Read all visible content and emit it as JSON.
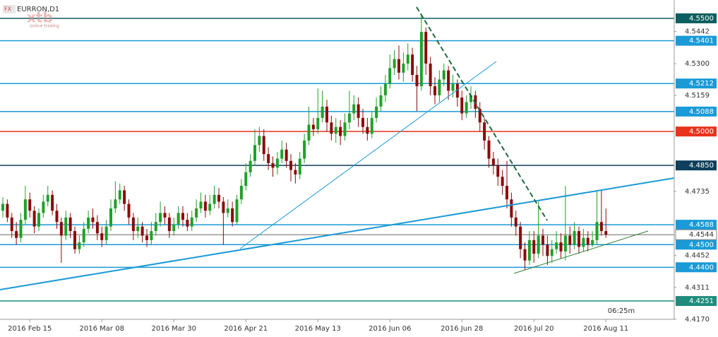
{
  "chart_data": {
    "type": "candlestick",
    "title": "EURRON,D1",
    "badge": "FX",
    "logo": "xtb",
    "logo_sub": "online trading",
    "timer": "06:25m",
    "categories": [
      null,
      null,
      null,
      null,
      null,
      null,
      "2016 Feb 15",
      null,
      null,
      null,
      null,
      null,
      null,
      null,
      null,
      null,
      null,
      null,
      null,
      null,
      null,
      null,
      "2016 Mar 08",
      null,
      null,
      null,
      null,
      null,
      null,
      null,
      null,
      null,
      null,
      null,
      null,
      null,
      null,
      null,
      "2016 Mar 30",
      null,
      null,
      null,
      null,
      null,
      null,
      null,
      null,
      null,
      null,
      null,
      null,
      null,
      null,
      null,
      "2016 Apr 21",
      null,
      null,
      null,
      null,
      null,
      null,
      null,
      null,
      null,
      null,
      null,
      null,
      null,
      null,
      null,
      "2016 May 13",
      null,
      null,
      null,
      null,
      null,
      null,
      null,
      null,
      null,
      null,
      null,
      null,
      null,
      null,
      null,
      "2016 Jun 06",
      null,
      null,
      null,
      null,
      null,
      null,
      null,
      null,
      null,
      null,
      null,
      null,
      null,
      null,
      null,
      "2016 Jun 28",
      null,
      null,
      null,
      null,
      null,
      null,
      null,
      null,
      null,
      null,
      null,
      null,
      null,
      null,
      null,
      "2016 Jul 20",
      null,
      null,
      null,
      null,
      null,
      null,
      null,
      null,
      null,
      null,
      null,
      null,
      null,
      null,
      null,
      "2016 Aug 11"
    ],
    "open": [
      4.465,
      4.468,
      4.462,
      4.456,
      4.453,
      4.461,
      4.47,
      4.465,
      4.458,
      4.464,
      4.469,
      4.472,
      4.465,
      4.46,
      4.454,
      4.462,
      4.456,
      4.448,
      4.451,
      4.457,
      4.462,
      4.46,
      4.455,
      4.452,
      4.458,
      4.466,
      4.47,
      4.474,
      4.468,
      4.462,
      4.456,
      4.458,
      4.454,
      4.452,
      4.456,
      4.46,
      4.464,
      4.462,
      4.456,
      4.459,
      4.464,
      4.461,
      4.458,
      4.462,
      4.466,
      4.469,
      4.465,
      4.468,
      4.472,
      4.469,
      4.464,
      4.466,
      4.46,
      4.47,
      4.476,
      4.482,
      4.487,
      4.494,
      4.498,
      4.49,
      4.486,
      4.484,
      4.488,
      4.492,
      4.487,
      4.483,
      4.481,
      4.488,
      4.496,
      4.503,
      4.501,
      4.506,
      4.511,
      4.504,
      4.499,
      4.502,
      4.498,
      4.504,
      4.508,
      4.512,
      4.506,
      4.502,
      4.499,
      4.506,
      4.511,
      4.516,
      4.521,
      4.528,
      4.532,
      4.526,
      4.53,
      4.534,
      4.525,
      4.52,
      4.544,
      4.53,
      4.52,
      4.516,
      4.523,
      4.527,
      4.518,
      4.521,
      4.515,
      4.508,
      4.513,
      4.516,
      4.51,
      4.504,
      4.496,
      4.488,
      4.485,
      4.48,
      4.476,
      4.47,
      4.462,
      4.458,
      4.448,
      4.443,
      4.452,
      4.446,
      4.454,
      4.45,
      4.445,
      4.448,
      4.451,
      4.447,
      4.454,
      4.45,
      4.456,
      4.449,
      4.453,
      4.45,
      4.452,
      4.46,
      4.456
    ],
    "high": [
      4.471,
      4.47,
      4.464,
      4.46,
      4.464,
      4.476,
      4.473,
      4.467,
      4.466,
      4.472,
      4.476,
      4.474,
      4.468,
      4.462,
      4.465,
      4.464,
      4.458,
      4.454,
      4.46,
      4.465,
      4.466,
      4.463,
      4.458,
      4.461,
      4.47,
      4.478,
      4.477,
      4.476,
      4.47,
      4.464,
      4.462,
      4.46,
      4.457,
      4.46,
      4.464,
      4.469,
      4.467,
      4.464,
      4.462,
      4.467,
      4.467,
      4.464,
      4.465,
      4.47,
      4.473,
      4.472,
      4.472,
      4.476,
      4.475,
      4.471,
      4.47,
      4.469,
      4.472,
      4.479,
      4.486,
      4.49,
      4.501,
      4.502,
      4.501,
      4.493,
      4.489,
      4.491,
      4.496,
      4.495,
      4.49,
      4.486,
      4.491,
      4.499,
      4.511,
      4.506,
      4.519,
      4.518,
      4.514,
      4.507,
      4.506,
      4.505,
      4.508,
      4.518,
      4.516,
      4.515,
      4.51,
      4.506,
      4.509,
      4.515,
      4.52,
      4.525,
      4.534,
      4.536,
      4.538,
      4.535,
      4.539,
      4.537,
      4.529,
      4.552,
      4.546,
      4.533,
      4.524,
      4.527,
      4.53,
      4.529,
      4.525,
      4.523,
      4.518,
      4.516,
      4.52,
      4.518,
      4.513,
      4.506,
      4.498,
      4.491,
      4.488,
      4.483,
      4.487,
      4.473,
      4.465,
      4.46,
      4.451,
      4.456,
      4.456,
      4.469,
      4.457,
      4.454,
      4.452,
      4.456,
      4.455,
      4.476,
      4.458,
      4.46,
      4.458,
      4.457,
      4.456,
      4.456,
      4.474,
      4.474,
      4.466
    ],
    "low": [
      4.462,
      4.46,
      4.453,
      4.45,
      4.451,
      4.459,
      4.462,
      4.455,
      4.456,
      4.462,
      4.467,
      4.463,
      4.457,
      4.442,
      4.452,
      4.453,
      4.446,
      4.446,
      4.449,
      4.455,
      4.457,
      4.452,
      4.449,
      4.45,
      4.456,
      4.464,
      4.468,
      4.465,
      4.459,
      4.452,
      4.453,
      4.451,
      4.449,
      4.45,
      4.454,
      4.458,
      4.459,
      4.453,
      4.454,
      4.457,
      4.458,
      4.456,
      4.456,
      4.46,
      4.464,
      4.462,
      4.463,
      4.466,
      4.466,
      4.45,
      4.462,
      4.458,
      4.459,
      4.468,
      4.474,
      4.48,
      4.485,
      4.491,
      4.487,
      4.483,
      4.48,
      4.481,
      4.486,
      4.484,
      4.478,
      4.477,
      4.479,
      4.486,
      4.494,
      4.498,
      4.499,
      4.504,
      4.5,
      4.496,
      4.495,
      4.494,
      4.496,
      4.501,
      4.505,
      4.502,
      4.499,
      4.496,
      4.497,
      4.504,
      4.509,
      4.513,
      4.519,
      4.525,
      4.523,
      4.522,
      4.527,
      4.522,
      4.509,
      4.518,
      4.525,
      4.516,
      4.512,
      4.513,
      4.52,
      4.514,
      4.515,
      4.511,
      4.505,
      4.506,
      4.51,
      4.506,
      4.5,
      4.492,
      4.484,
      4.481,
      4.476,
      4.472,
      4.466,
      4.458,
      4.454,
      4.444,
      4.439,
      4.441,
      4.442,
      4.444,
      4.445,
      4.441,
      4.442,
      4.446,
      4.444,
      4.443,
      4.446,
      4.448,
      4.446,
      4.447,
      4.447,
      4.449,
      4.45,
      4.454,
      4.453
    ],
    "close": [
      4.468,
      4.462,
      4.456,
      4.453,
      4.461,
      4.47,
      4.465,
      4.458,
      4.464,
      4.469,
      4.472,
      4.465,
      4.46,
      4.454,
      4.462,
      4.456,
      4.448,
      4.451,
      4.457,
      4.462,
      4.46,
      4.455,
      4.452,
      4.458,
      4.466,
      4.47,
      4.474,
      4.468,
      4.462,
      4.456,
      4.458,
      4.454,
      4.452,
      4.456,
      4.46,
      4.464,
      4.462,
      4.456,
      4.459,
      4.464,
      4.461,
      4.458,
      4.462,
      4.466,
      4.469,
      4.465,
      4.468,
      4.472,
      4.469,
      4.464,
      4.466,
      4.46,
      4.47,
      4.476,
      4.482,
      4.487,
      4.494,
      4.498,
      4.49,
      4.486,
      4.484,
      4.488,
      4.492,
      4.487,
      4.483,
      4.481,
      4.488,
      4.496,
      4.503,
      4.501,
      4.506,
      4.511,
      4.504,
      4.499,
      4.502,
      4.498,
      4.504,
      4.508,
      4.512,
      4.506,
      4.502,
      4.499,
      4.506,
      4.511,
      4.516,
      4.521,
      4.528,
      4.532,
      4.526,
      4.53,
      4.534,
      4.525,
      4.52,
      4.544,
      4.53,
      4.52,
      4.516,
      4.523,
      4.527,
      4.518,
      4.521,
      4.515,
      4.508,
      4.513,
      4.516,
      4.51,
      4.504,
      4.496,
      4.488,
      4.485,
      4.48,
      4.476,
      4.47,
      4.462,
      4.458,
      4.448,
      4.443,
      4.452,
      4.446,
      4.454,
      4.45,
      4.445,
      4.448,
      4.451,
      4.447,
      4.454,
      4.45,
      4.456,
      4.449,
      4.453,
      4.45,
      4.452,
      4.46,
      4.456,
      4.4544
    ],
    "up_color": "#1fa12a",
    "down_color": "#8b0a0a",
    "ylim": [
      4.417,
      4.5581
    ],
    "yticks": [
      4.5442,
      {
        "value": 4.53,
        "label": "4.5300"
      },
      4.5159,
      4.4735,
      4.4452,
      4.4311,
      {
        "value": 4.417,
        "label": "4.4170"
      }
    ],
    "levels": [
      {
        "value": 4.55,
        "label": "4.5500",
        "color": "#0d5f5f"
      },
      {
        "value": 4.5401,
        "color": "#1a9ad6"
      },
      {
        "value": 4.5212,
        "color": "#1a9ad6"
      },
      {
        "value": 4.5088,
        "color": "#1a9ad6"
      },
      {
        "value": 4.5,
        "label": "4.5000",
        "color": "#e8341c"
      },
      {
        "value": 4.485,
        "label": "4.4850",
        "color": "#0e3f5c"
      },
      {
        "value": 4.4588,
        "color": "#1a9ad6"
      },
      {
        "value": 4.45,
        "label": "4.4500",
        "color": "#1a9ad6"
      },
      {
        "value": 4.44,
        "label": "4.4400",
        "color": "#1a9ad6"
      },
      {
        "value": 4.4251,
        "color": "#1f8c7c"
      }
    ],
    "last_price": 4.4544
  }
}
